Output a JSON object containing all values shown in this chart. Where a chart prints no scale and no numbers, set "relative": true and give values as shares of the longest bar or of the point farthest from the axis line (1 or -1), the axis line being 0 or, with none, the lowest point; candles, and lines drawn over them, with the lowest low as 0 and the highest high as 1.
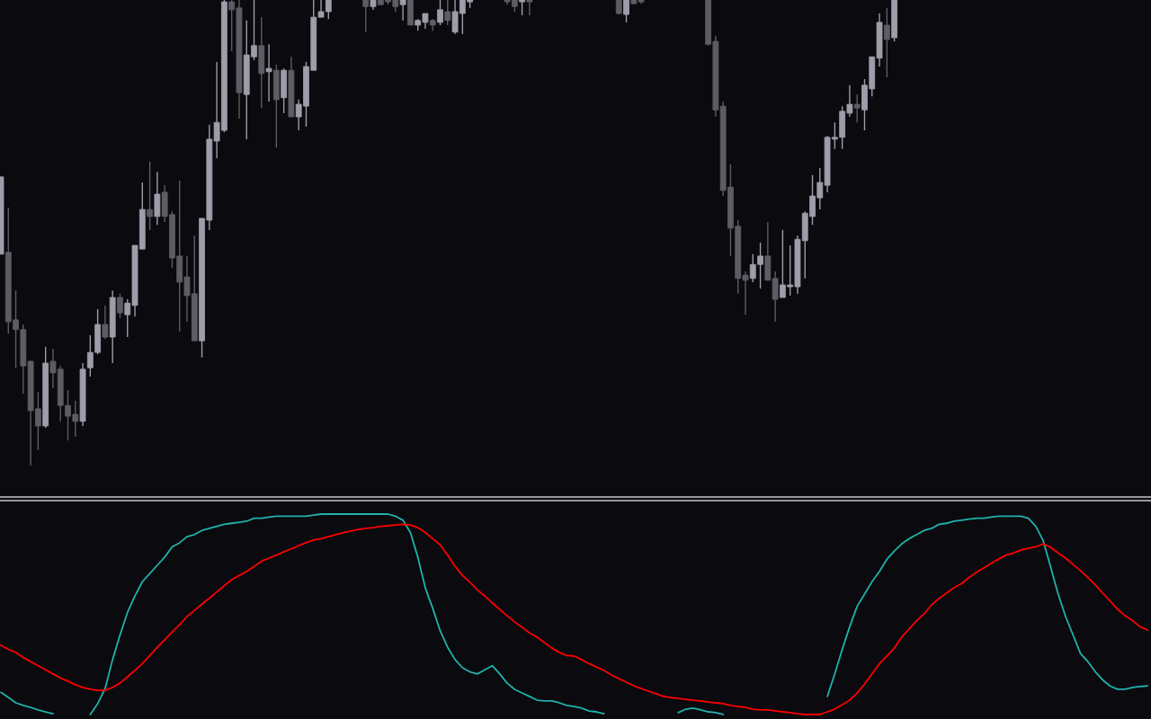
{
  "chart_data": [
    {
      "type": "candlestick",
      "relative": true,
      "categories": [
        null,
        null,
        null,
        null,
        null,
        null,
        null,
        null,
        null,
        null,
        null,
        null,
        null,
        null,
        null,
        null,
        null,
        null,
        null,
        null,
        null,
        null,
        null,
        null,
        null,
        null,
        null,
        null,
        null,
        null,
        null,
        null,
        null,
        null,
        null,
        null,
        null,
        null,
        null,
        null,
        null,
        null,
        null,
        null,
        null,
        null,
        null,
        null,
        null,
        null,
        null,
        null,
        null,
        null,
        null,
        null,
        null,
        null,
        null,
        null,
        null,
        null,
        null,
        null,
        null,
        null,
        null,
        null,
        null,
        null,
        null,
        null,
        null,
        null,
        null,
        null,
        null,
        null,
        null,
        null,
        null,
        null,
        null,
        null,
        null,
        null,
        null,
        null,
        null,
        null,
        null,
        null,
        null,
        null,
        null,
        null,
        null,
        null,
        null,
        null,
        null,
        null,
        null,
        null,
        null,
        null,
        null,
        null,
        null,
        null,
        null,
        null,
        null,
        null,
        null,
        null,
        null,
        null,
        null,
        null,
        null,
        null,
        null,
        null,
        null,
        null,
        null,
        null,
        null,
        null,
        null,
        null,
        null,
        null,
        null,
        null,
        null,
        null,
        null,
        null,
        null,
        null,
        null,
        null,
        null,
        null,
        null,
        null,
        null,
        null,
        null,
        null,
        null,
        null,
        null
      ],
      "ohlc": [
        [
          0.454,
          0.62,
          0.454,
          0.62
        ],
        [
          0.458,
          0.554,
          0.284,
          0.309
        ],
        [
          0.313,
          0.376,
          0.21,
          0.292
        ],
        [
          0.292,
          0.303,
          0.154,
          0.214
        ],
        [
          0.224,
          0.224,
          0,
          0.118
        ],
        [
          0.122,
          0.158,
          0.033,
          0.085
        ],
        [
          0.085,
          0.255,
          0.081,
          0.22
        ],
        [
          0.224,
          0.251,
          0.166,
          0.199
        ],
        [
          0.207,
          0.214,
          0.095,
          0.129
        ],
        [
          0.129,
          0.162,
          0.054,
          0.106
        ],
        [
          0.11,
          0.139,
          0.062,
          0.095
        ],
        [
          0.095,
          0.22,
          0.085,
          0.207
        ],
        [
          0.21,
          0.28,
          0.191,
          0.243
        ],
        [
          0.243,
          0.336,
          0.239,
          0.303
        ],
        [
          0.303,
          0.344,
          0.272,
          0.276
        ],
        [
          0.276,
          0.376,
          0.22,
          0.361
        ],
        [
          0.361,
          0.369,
          0.317,
          0.328
        ],
        [
          0.324,
          0.357,
          0.276,
          0.349
        ],
        [
          0.344,
          0.473,
          0.32,
          0.473
        ],
        [
          0.465,
          0.608,
          0.465,
          0.55
        ],
        [
          0.55,
          0.653,
          0.506,
          0.535
        ],
        [
          0.535,
          0.631,
          0.517,
          0.583
        ],
        [
          0.587,
          0.602,
          0.523,
          0.535
        ],
        [
          0.539,
          0.546,
          0.425,
          0.446
        ],
        [
          0.45,
          0.612,
          0.288,
          0.394
        ],
        [
          0.405,
          0.45,
          0.309,
          0.365
        ],
        [
          0.369,
          0.494,
          0.268,
          0.268
        ],
        [
          0.268,
          0.531,
          0.232,
          0.531
        ],
        [
          0.527,
          0.732,
          0.506,
          0.701
        ],
        [
          0.697,
          0.867,
          0.66,
          0.737
        ],
        [
          0.72,
          1,
          0.716,
          0.996
        ],
        [
          0.996,
          1,
          0.89,
          0.979
        ],
        [
          0.983,
          1,
          0.745,
          0.801
        ],
        [
          0.797,
          0.956,
          0.701,
          0.882
        ],
        [
          0.878,
          1,
          0.871,
          0.902
        ],
        [
          0.902,
          0.963,
          0.768,
          0.842
        ],
        [
          0.846,
          0.905,
          0.782,
          0.853
        ],
        [
          0.849,
          0.861,
          0.683,
          0.786
        ],
        [
          0.79,
          0.853,
          0.757,
          0.849
        ],
        [
          0.849,
          0.878,
          0.749,
          0.749
        ],
        [
          0.749,
          0.786,
          0.72,
          0.776
        ],
        [
          0.772,
          0.867,
          0.728,
          0.857
        ],
        [
          0.849,
          1,
          0.849,
          0.963
        ],
        [
          0.963,
          1,
          0.963,
          0.975
        ],
        [
          0.975,
          1,
          0.959,
          1
        ],
        null,
        null,
        null,
        null,
        [
          1,
          1,
          0.931,
          0.986
        ],
        [
          0.986,
          1,
          0.979,
          1
        ],
        [
          1,
          1,
          0.99,
          0.99
        ],
        [
          1,
          1,
          0.99,
          0.996
        ],
        [
          1,
          1,
          0.975,
          0.986
        ],
        [
          0.99,
          1,
          0.956,
          1
        ],
        [
          1,
          1,
          0.946,
          0.946
        ],
        [
          0.946,
          0.959,
          0.934,
          0.956
        ],
        [
          0.952,
          0.971,
          0.938,
          0.971
        ],
        [
          0.956,
          0.959,
          0.934,
          0.946
        ],
        [
          0.952,
          1,
          0.946,
          0.979
        ],
        [
          0.975,
          1,
          0.946,
          0.956
        ],
        [
          0.931,
          1,
          0.927,
          0.975
        ],
        [
          0.971,
          1,
          0.927,
          1
        ],
        [
          0.996,
          1,
          0.983,
          1
        ],
        null,
        null,
        null,
        null,
        [
          1,
          1,
          0.99,
          0.996
        ],
        [
          1,
          1,
          0.975,
          0.986
        ],
        [
          0.996,
          1,
          0.967,
          1
        ],
        [
          1,
          1,
          0.967,
          0.996
        ],
        null,
        null,
        null,
        null,
        null,
        null,
        null,
        null,
        null,
        null,
        null,
        [
          1,
          1,
          0.969,
          0.971
        ],
        [
          0.969,
          1,
          0.952,
          1
        ],
        [
          1,
          1,
          0.992,
          0.992
        ],
        [
          1,
          1,
          0.992,
          0.996
        ],
        null,
        null,
        null,
        null,
        null,
        null,
        null,
        null,
        [
          1,
          1,
          0.902,
          0.905
        ],
        [
          0.911,
          0.923,
          0.749,
          0.764
        ],
        [
          0.772,
          0.782,
          0.579,
          0.591
        ],
        [
          0.598,
          0.647,
          0.45,
          0.51
        ],
        [
          0.514,
          0.527,
          0.369,
          0.402
        ],
        [
          0.409,
          0.417,
          0.324,
          0.398
        ],
        [
          0.402,
          0.454,
          0.394,
          0.432
        ],
        [
          0.432,
          0.479,
          0.38,
          0.45
        ],
        [
          0.45,
          0.523,
          0.398,
          0.398
        ],
        [
          0.402,
          0.417,
          0.309,
          0.357
        ],
        [
          0.361,
          0.506,
          0.361,
          0.388
        ],
        [
          0.384,
          0.473,
          0.365,
          0.388
        ],
        [
          0.384,
          0.494,
          0.369,
          0.486
        ],
        [
          0.483,
          0.546,
          0.402,
          0.542
        ],
        [
          0.535,
          0.624,
          0.517,
          0.579
        ],
        [
          0.575,
          0.639,
          0.55,
          0.608
        ],
        [
          0.602,
          0.708,
          0.587,
          0.705
        ],
        [
          0.701,
          0.737,
          0.68,
          0.705
        ],
        [
          0.705,
          0.772,
          0.68,
          0.761
        ],
        [
          0.757,
          0.817,
          0.749,
          0.776
        ],
        [
          0.776,
          0.797,
          0.737,
          0.768
        ],
        [
          0.764,
          0.83,
          0.72,
          0.817
        ],
        [
          0.809,
          0.878,
          0.793,
          0.878
        ],
        [
          0.875,
          0.971,
          0.857,
          0.952
        ],
        [
          0.946,
          0.983,
          0.834,
          0.915
        ],
        [
          0.919,
          1,
          0.911,
          1
        ],
        null,
        null,
        null,
        null,
        null,
        null,
        null,
        null,
        null,
        null,
        null,
        null,
        null,
        null,
        null,
        null,
        null,
        null,
        null,
        null,
        null,
        null,
        null,
        null,
        null,
        null,
        null,
        null,
        null,
        null,
        null,
        null,
        null,
        null
      ],
      "colors": [
        "#9d9ea9",
        "#5d5e63",
        "#5d5e63",
        "#5d5e63",
        "#5d5e63",
        "#5d5e63",
        "#9d9ea9",
        "#5d5e63",
        "#5d5e63",
        "#5d5e63",
        "#5d5e63",
        "#9d9ea9",
        "#9d9ea9",
        "#9d9ea9",
        "#5d5e63",
        "#9d9ea9",
        "#5d5e63",
        "#9d9ea9",
        "#9d9ea9",
        "#9d9ea9",
        "#5d5e63",
        "#9d9ea9",
        "#5d5e63",
        "#5d5e63",
        "#5d5e63",
        "#5d5e63",
        "#5d5e63",
        "#9d9ea9",
        "#9d9ea9",
        "#9d9ea9",
        "#9d9ea9",
        "#5d5e63",
        "#5d5e63",
        "#9d9ea9",
        "#9d9ea9",
        "#5d5e63",
        "#9d9ea9",
        "#5d5e63",
        "#9d9ea9",
        "#5d5e63",
        "#9d9ea9",
        "#9d9ea9",
        "#9d9ea9",
        "#9d9ea9",
        "#9d9ea9",
        null,
        null,
        null,
        null,
        "#5d5e63",
        "#9d9ea9",
        "#5d5e63",
        "#5d5e63",
        "#5d5e63",
        "#9d9ea9",
        "#5d5e63",
        "#9d9ea9",
        "#9d9ea9",
        "#5d5e63",
        "#9d9ea9",
        "#5d5e63",
        "#9d9ea9",
        "#9d9ea9",
        "#9d9ea9",
        null,
        null,
        null,
        null,
        "#5d5e63",
        "#5d5e63",
        "#9d9ea9",
        "#5d5e63",
        null,
        null,
        null,
        null,
        null,
        null,
        null,
        null,
        null,
        null,
        null,
        "#5d5e63",
        "#9d9ea9",
        "#5d5e63",
        "#5d5e63",
        null,
        null,
        null,
        null,
        null,
        null,
        null,
        null,
        "#5d5e63",
        "#5d5e63",
        "#5d5e63",
        "#5d5e63",
        "#5d5e63",
        "#5d5e63",
        "#9d9ea9",
        "#9d9ea9",
        "#5d5e63",
        "#5d5e63",
        "#9d9ea9",
        "#9d9ea9",
        "#9d9ea9",
        "#9d9ea9",
        "#9d9ea9",
        "#9d9ea9",
        "#9d9ea9",
        "#9d9ea9",
        "#9d9ea9",
        "#9d9ea9",
        "#5d5e63",
        "#9d9ea9",
        "#9d9ea9",
        "#9d9ea9",
        "#5d5e63",
        "#9d9ea9",
        null,
        null,
        null,
        null,
        null,
        null,
        null,
        null,
        null,
        null,
        null,
        null,
        null,
        null,
        null,
        null,
        null,
        null,
        null,
        null,
        null,
        null,
        null,
        null,
        null,
        null,
        null,
        null,
        null,
        null,
        null,
        null,
        null,
        null
      ]
    },
    {
      "type": "line",
      "relative": true,
      "categories": [
        null,
        null,
        null,
        null,
        null,
        null,
        null,
        null,
        null,
        null,
        null,
        null,
        null,
        null,
        null,
        null,
        null,
        null,
        null,
        null,
        null,
        null,
        null,
        null,
        null,
        null,
        null,
        null,
        null,
        null,
        null,
        null,
        null,
        null,
        null,
        null,
        null,
        null,
        null,
        null,
        null,
        null,
        null,
        null,
        null,
        null,
        null,
        null,
        null,
        null,
        null,
        null,
        null,
        null,
        null,
        null,
        null,
        null,
        null,
        null,
        null,
        null,
        null,
        null,
        null,
        null,
        null,
        null,
        null,
        null,
        null,
        null,
        null,
        null,
        null,
        null,
        null,
        null,
        null,
        null,
        null,
        null,
        null,
        null,
        null,
        null,
        null,
        null,
        null,
        null,
        null,
        null,
        null,
        null,
        null,
        null,
        null,
        null,
        null,
        null,
        null,
        null,
        null,
        null,
        null,
        null,
        null,
        null,
        null,
        null,
        null,
        null,
        null,
        null,
        null,
        null,
        null,
        null,
        null,
        null,
        null,
        null,
        null,
        null,
        null,
        null,
        null,
        null,
        null,
        null,
        null,
        null,
        null,
        null,
        null,
        null,
        null,
        null,
        null,
        null,
        null,
        null,
        null,
        null,
        null,
        null,
        null,
        null,
        null,
        null,
        null,
        null,
        null,
        null,
        null
      ],
      "series": [
        {
          "color": "#20b2aa",
          "values": [
            0.13,
            0.105,
            0.079,
            0.066,
            0.057,
            0.044,
            0.035,
            0.026,
            null,
            null,
            null,
            null,
            0.022,
            0.075,
            0.149,
            0.29,
            0.41,
            0.52,
            0.6,
            0.67,
            0.71,
            0.75,
            0.79,
            0.84,
            0.86,
            0.89,
            0.9,
            0.92,
            0.93,
            0.94,
            0.95,
            0.955,
            0.96,
            0.965,
            0.98,
            0.98,
            0.985,
            0.99,
            0.99,
            0.99,
            0.99,
            0.99,
            0.995,
            1,
            1,
            1,
            1,
            1,
            1,
            1,
            1,
            1,
            1,
            0.99,
            0.97,
            0.91,
            0.79,
            0.64,
            0.54,
            0.43,
            0.35,
            0.29,
            0.25,
            0.23,
            0.22,
            0.24,
            0.26,
            0.22,
            0.175,
            0.145,
            0.127,
            0.11,
            0.092,
            0.088,
            0.088,
            0.079,
            0.066,
            0.061,
            0.053,
            0.039,
            0.035,
            0.026,
            null,
            null,
            null,
            null,
            null,
            null,
            null,
            null,
            null,
            0.031,
            0.048,
            0.053,
            0.044,
            0.035,
            0.031,
            0.022,
            null,
            null,
            null,
            null,
            null,
            null,
            null,
            null,
            null,
            null,
            null,
            null,
            null,
            0.11,
            0.22,
            0.34,
            0.45,
            0.55,
            0.61,
            0.67,
            0.72,
            0.78,
            0.82,
            0.855,
            0.88,
            0.9,
            0.92,
            0.93,
            0.95,
            0.955,
            0.965,
            0.97,
            0.975,
            0.98,
            0.98,
            0.985,
            0.99,
            0.99,
            0.99,
            0.99,
            0.98,
            0.94,
            0.87,
            0.74,
            0.61,
            0.5,
            0.41,
            0.32,
            0.28,
            0.23,
            0.19,
            0.16,
            0.145,
            0.145,
            0.154,
            0.158,
            0.162
          ]
        },
        {
          "color": "#ff0000",
          "values": [
            0.36,
            0.34,
            0.325,
            0.3,
            0.28,
            0.26,
            0.24,
            0.22,
            0.2,
            0.185,
            0.167,
            0.154,
            0.145,
            0.14,
            0.14,
            0.154,
            0.175,
            0.206,
            0.237,
            0.27,
            0.31,
            0.35,
            0.386,
            0.425,
            0.46,
            0.5,
            0.53,
            0.56,
            0.59,
            0.62,
            0.65,
            0.68,
            0.7,
            0.72,
            0.745,
            0.77,
            0.785,
            0.8,
            0.816,
            0.83,
            0.846,
            0.86,
            0.873,
            0.88,
            0.89,
            0.9,
            0.91,
            0.917,
            0.925,
            0.93,
            0.934,
            0.94,
            0.943,
            0.947,
            0.95,
            0.947,
            0.934,
            0.91,
            0.88,
            0.85,
            0.8,
            0.745,
            0.7,
            0.667,
            0.63,
            0.6,
            0.566,
            0.535,
            0.504,
            0.474,
            0.447,
            0.42,
            0.4,
            0.373,
            0.346,
            0.325,
            0.31,
            0.307,
            0.29,
            0.27,
            0.254,
            0.237,
            0.215,
            0.197,
            0.18,
            0.162,
            0.149,
            0.136,
            0.123,
            0.11,
            0.105,
            0.1,
            0.096,
            0.092,
            0.088,
            0.083,
            0.079,
            0.075,
            0.066,
            0.061,
            0.057,
            0.048,
            0.044,
            0.044,
            0.04,
            0.035,
            0.031,
            0.026,
            0.022,
            0.022,
            0.022,
            0.035,
            0.048,
            0.07,
            0.092,
            0.127,
            0.17,
            0.22,
            0.27,
            0.307,
            0.346,
            0.4,
            0.44,
            0.48,
            0.513,
            0.557,
            0.588,
            0.614,
            0.64,
            0.66,
            0.69,
            0.715,
            0.737,
            0.76,
            0.78,
            0.8,
            0.81,
            0.825,
            0.833,
            0.84,
            0.855,
            0.838,
            0.81,
            0.785,
            0.754,
            0.724,
            0.69,
            0.654,
            0.614,
            0.575,
            0.535,
            0.504,
            0.48,
            0.45,
            0.434
          ]
        }
      ]
    }
  ]
}
